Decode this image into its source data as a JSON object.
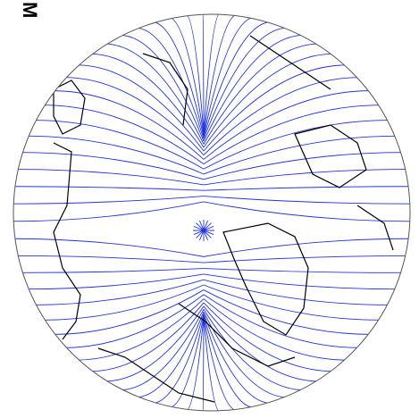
{
  "map": {
    "title": "M"
  }
}
